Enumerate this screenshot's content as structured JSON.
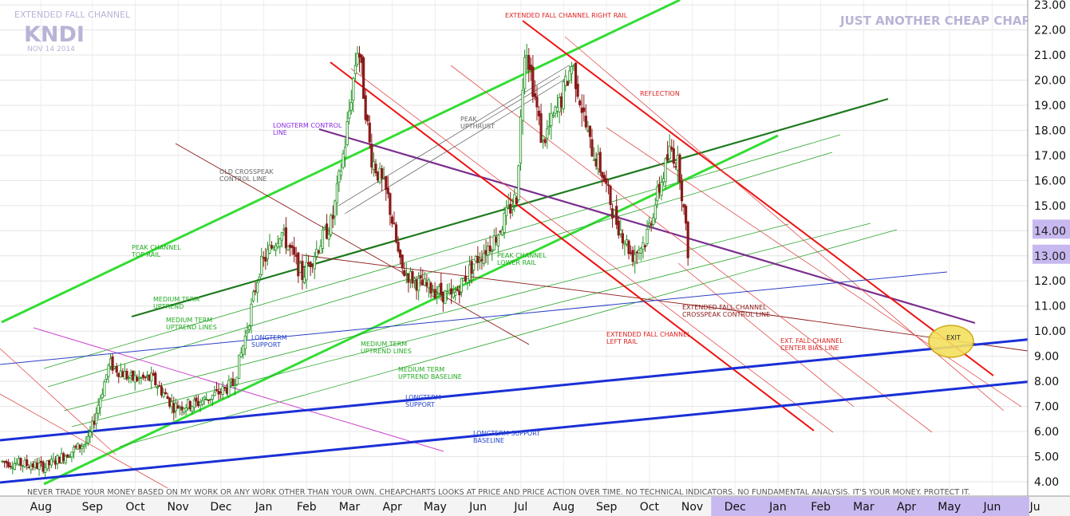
{
  "chart_data": {
    "type": "candlestick",
    "watermark": {
      "top_left": "EXTENDED FALL CHANNEL",
      "symbol": "KNDI",
      "date": "NOV 14 2014",
      "top_right": "JUST ANOTHER CHEAP CHART"
    },
    "ylim": [
      3.6,
      23.2
    ],
    "y_ticks": [
      "4.00",
      "5.00",
      "6.00",
      "7.00",
      "8.00",
      "9.00",
      "10.00",
      "11.00",
      "12.00",
      "13.00",
      "14.00",
      "15.00",
      "16.00",
      "17.00",
      "18.00",
      "19.00",
      "20.00",
      "21.00",
      "22.00",
      "23.00"
    ],
    "price_tags": [
      {
        "value": 14.0,
        "label": "14.00"
      },
      {
        "value": 13.0,
        "label": "13.00"
      }
    ],
    "x_ticks": [
      "Aug",
      "Sep",
      "Oct",
      "Nov",
      "Dec",
      "Jan",
      "Feb",
      "Mar",
      "Apr",
      "May",
      "Jun",
      "Jul",
      "Aug",
      "Sep",
      "Oct",
      "Nov",
      "Dec",
      "Jan",
      "Feb",
      "Mar",
      "Apr",
      "May",
      "Jun",
      "Ju"
    ],
    "x_tick_t": [
      0.9,
      2.1,
      3.1,
      4.1,
      5.1,
      6.1,
      7.1,
      8.1,
      9.1,
      10.1,
      11.1,
      12.1,
      13.1,
      14.1,
      15.1,
      16.1,
      17.1,
      18.1,
      19.1,
      20.1,
      21.1,
      22.1,
      23.1,
      24.1
    ],
    "future_months_from_index": 16,
    "anchors": [
      [
        0,
        4.8
      ],
      [
        1,
        4.6
      ],
      [
        2,
        5.6
      ],
      [
        2.5,
        8.7
      ],
      [
        3,
        8.1
      ],
      [
        3.5,
        8.1
      ],
      [
        4,
        7.0
      ],
      [
        4.5,
        7.1
      ],
      [
        5,
        7.5
      ],
      [
        5.4,
        7.9
      ],
      [
        5.7,
        10.0
      ],
      [
        6,
        12.5
      ],
      [
        6.5,
        14.0
      ],
      [
        7,
        12.2
      ],
      [
        7.7,
        14.4
      ],
      [
        8,
        17.5
      ],
      [
        8.3,
        21.5
      ],
      [
        8.6,
        17.0
      ],
      [
        9,
        15.3
      ],
      [
        9.3,
        12.5
      ],
      [
        9.7,
        11.9
      ],
      [
        10,
        11.7
      ],
      [
        10.5,
        11.3
      ],
      [
        11,
        12.7
      ],
      [
        11.5,
        13.7
      ],
      [
        12,
        15.4
      ],
      [
        12.2,
        21.7
      ],
      [
        12.6,
        17.5
      ],
      [
        13,
        19.0
      ],
      [
        13.3,
        20.7
      ],
      [
        13.7,
        17.5
      ],
      [
        14,
        16.3
      ],
      [
        14.3,
        14.5
      ],
      [
        14.7,
        13.0
      ],
      [
        15,
        13.6
      ],
      [
        15.3,
        15.5
      ],
      [
        15.6,
        17.3
      ],
      [
        15.8,
        16.5
      ],
      [
        16,
        13.2
      ]
    ],
    "annotations": [
      {
        "text": "EXTENDED FALL CHANNEL RIGHT RAIL",
        "color": "#dd2222"
      },
      {
        "text": "REFLECTION",
        "color": "#dd2222"
      },
      {
        "text": "PEAK UPTHRUST",
        "color": "#666666"
      },
      {
        "text": "LONGTERM CONTROL LINE",
        "color": "#8a2be2"
      },
      {
        "text": "OLD CROSSPEAK CONTROL LINE",
        "color": "#666666"
      },
      {
        "text": "PEAK CHANNEL TOP RAIL",
        "color": "#22aa22"
      },
      {
        "text": "PEAK CHANNEL LOWER RAIL",
        "color": "#22aa22"
      },
      {
        "text": "MEDIUM TERM UPTREND",
        "color": "#22aa22"
      },
      {
        "text": "MEDIUM TERM UPTREND LINES",
        "color": "#22aa22"
      },
      {
        "text": "LONGTERM SUPPORT",
        "color": "#2244cc"
      },
      {
        "text": "MEDIUM TERM UPTREND LINES",
        "color": "#22aa22"
      },
      {
        "text": "MEDIUM TERM UPTREND BASELINE",
        "color": "#22aa22"
      },
      {
        "text": "LONGTERM SUPPORT",
        "color": "#2244cc"
      },
      {
        "text": "LONGTERM SUPPORT BASELINE",
        "color": "#2244cc"
      },
      {
        "text": "EXTENDED FALL CHANNEL CROSSPEAK CONTROL LINE",
        "color": "#8b1a1a"
      },
      {
        "text": "EXTENDED FALL CHANNEL LEFT RAIL",
        "color": "#dd2222"
      },
      {
        "text": "EXT. FALL CHANNEL CENTER BIAS LINE",
        "color": "#dd2222"
      },
      {
        "text": "EXIT",
        "color": "#222222"
      }
    ],
    "disclaimer": "NEVER TRADE YOUR MONEY BASED ON MY WORK OR ANY WORK OTHER THAN YOUR OWN. CHEAPCHARTS LOOKS AT PRICE AND PRICE ACTION OVER TIME. NO TECHNICAL INDICATORS. NO FUNDAMENTAL ANALYSIS. IT'S YOUR MONEY. PROTECT IT.",
    "colors": {
      "up": "#1f8f1f",
      "down": "#8b1a1a",
      "green_bright": "#33dd33",
      "green_dark": "#1e7a1e",
      "green_mid": "#2aa52a",
      "red": "#ee1111",
      "red_thin": "#e05050",
      "maroon": "#8b1a1a",
      "purple": "#7b2d8e",
      "magenta": "#cc44cc",
      "blue": "#1a2fd6",
      "blue_thin": "#2b3fc4",
      "exit_fill": "#f5e060",
      "future_bar": "#c8b8f0"
    }
  }
}
